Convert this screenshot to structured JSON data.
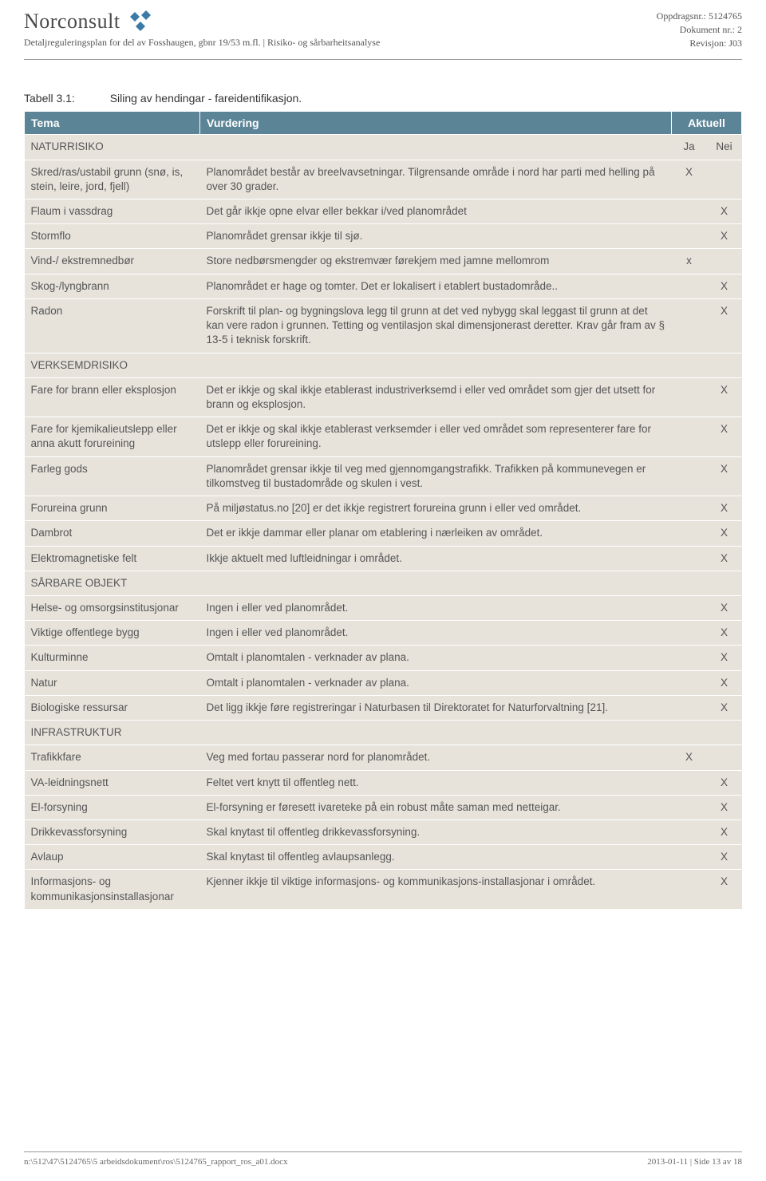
{
  "header": {
    "company": "Norconsult",
    "subtitle": "Detaljreguleringsplan for del av Fosshaugen, gbnr 19/53 m.fl.  |  Risiko- og sårbarheitsanalyse",
    "oppdrag_label": "Oppdragsnr.:",
    "oppdrag_value": "5124765",
    "dokument_label": "Dokument nr.:",
    "dokument_value": "2",
    "revisjon_label": "Revisjon:",
    "revisjon_value": "J03"
  },
  "caption": {
    "label": "Tabell 3.1:",
    "text": "Siling av hendingar - fareidentifikasjon."
  },
  "table": {
    "header_bg": "#5b8496",
    "row_bg": "#e7e3db",
    "columns": {
      "tema": "Tema",
      "vurdering": "Vurdering",
      "aktuell": "Aktuell",
      "ja": "Ja",
      "nei": "Nei"
    },
    "rows": [
      {
        "type": "section",
        "tema": "NATURRISIKO",
        "vurdering": "",
        "ja": "Ja",
        "nei": "Nei"
      },
      {
        "tema": "Skred/ras/ustabil grunn (snø, is, stein, leire, jord, fjell)",
        "vurdering": "Planområdet består av breelvavsetningar. Tilgrensande område i nord har parti med helling på over 30 grader.",
        "ja": "X",
        "nei": ""
      },
      {
        "tema": "Flaum i vassdrag",
        "vurdering": "Det går ikkje opne elvar eller bekkar i/ved planområdet",
        "ja": "",
        "nei": "X"
      },
      {
        "tema": "Stormflo",
        "vurdering": "Planområdet grensar ikkje til sjø.",
        "ja": "",
        "nei": "X"
      },
      {
        "tema": "Vind-/ ekstremnedbør",
        "vurdering": "Store nedbørsmengder og ekstremvær førekjem med jamne mellomrom",
        "ja": "x",
        "nei": ""
      },
      {
        "tema": "Skog-/lyngbrann",
        "vurdering": "Planområdet er hage og tomter. Det er lokalisert i etablert bustadområde..",
        "ja": "",
        "nei": "X"
      },
      {
        "tema": "Radon",
        "vurdering": "Forskrift til plan- og bygningslova legg til grunn at det ved nybygg skal leggast til grunn at det kan vere radon i grunnen. Tetting og ventilasjon skal dimensjonerast deretter. Krav går fram av § 13-5 i teknisk forskrift.",
        "ja": "",
        "nei": "X"
      },
      {
        "type": "section",
        "tema": "VERKSEMDRISIKO",
        "vurdering": "",
        "ja": "",
        "nei": ""
      },
      {
        "tema": "Fare for brann eller eksplosjon",
        "vurdering": "Det er ikkje og skal ikkje etablerast industriverksemd i eller ved området som gjer det utsett for brann og eksplosjon.",
        "ja": "",
        "nei": "X"
      },
      {
        "tema": "Fare for kjemikalieutslepp eller anna akutt forureining",
        "vurdering": "Det er ikkje og skal ikkje etablerast verksemder i eller ved området som representerer fare for utslepp eller forureining.",
        "ja": "",
        "nei": "X"
      },
      {
        "tema": "Farleg gods",
        "vurdering": "Planområdet grensar ikkje til veg med gjennomgangstrafikk. Trafikken på kommunevegen er tilkomstveg til bustadområde og skulen i vest.",
        "ja": "",
        "nei": "X"
      },
      {
        "tema": "Forureina grunn",
        "vurdering": "På miljøstatus.no [20] er det ikkje registrert forureina grunn i eller ved området.",
        "ja": "",
        "nei": "X"
      },
      {
        "tema": "Dambrot",
        "vurdering": "Det er ikkje dammar eller planar om etablering i nærleiken av området.",
        "ja": "",
        "nei": "X"
      },
      {
        "tema": "Elektromagnetiske felt",
        "vurdering": "Ikkje aktuelt med luftleidningar i området.",
        "ja": "",
        "nei": "X"
      },
      {
        "type": "section",
        "tema": "SÅRBARE OBJEKT",
        "vurdering": "",
        "ja": "",
        "nei": ""
      },
      {
        "tema": "Helse- og omsorgsinstitusjonar",
        "vurdering": "Ingen i eller ved planområdet.",
        "ja": "",
        "nei": "X"
      },
      {
        "tema": "Viktige offentlege bygg",
        "vurdering": "Ingen i eller ved planområdet.",
        "ja": "",
        "nei": "X"
      },
      {
        "tema": "Kulturminne",
        "vurdering": "Omtalt i planomtalen - verknader av plana.",
        "ja": "",
        "nei": "X"
      },
      {
        "tema": "Natur",
        "vurdering": "Omtalt i planomtalen - verknader av plana.",
        "ja": "",
        "nei": "X"
      },
      {
        "tema": "Biologiske ressursar",
        "vurdering": "Det ligg ikkje føre registreringar i Naturbasen til Direktoratet for Naturforvaltning [21].",
        "ja": "",
        "nei": "X"
      },
      {
        "type": "section",
        "tema": "INFRASTRUKTUR",
        "vurdering": "",
        "ja": "",
        "nei": ""
      },
      {
        "tema": "Trafikkfare",
        "vurdering": "Veg med fortau passerar nord for planområdet.",
        "ja": "X",
        "nei": ""
      },
      {
        "tema": "VA-leidningsnett",
        "vurdering": "Feltet vert knytt til offentleg nett.",
        "ja": "",
        "nei": "X"
      },
      {
        "tema": "El-forsyning",
        "vurdering": "El-forsyning er føresett ivareteke på ein robust måte saman med netteigar.",
        "ja": "",
        "nei": "X"
      },
      {
        "tema": "Drikkevassforsyning",
        "vurdering": "Skal knytast til offentleg drikkevassforsyning.",
        "ja": "",
        "nei": "X"
      },
      {
        "tema": "Avlaup",
        "vurdering": "Skal knytast til offentleg avlaupsanlegg.",
        "ja": "",
        "nei": "X"
      },
      {
        "tema": "Informasjons- og kommunikasjonsinstallasjonar",
        "vurdering": "Kjenner ikkje til viktige informasjons- og kommunikasjons-installasjonar i området.",
        "ja": "",
        "nei": "X"
      }
    ]
  },
  "footer": {
    "path": "n:\\512\\47\\5124765\\5 arbeidsdokument\\ros\\5124765_rapport_ros_a01.docx",
    "page": "2013-01-11  |  Side 13 av 18"
  }
}
